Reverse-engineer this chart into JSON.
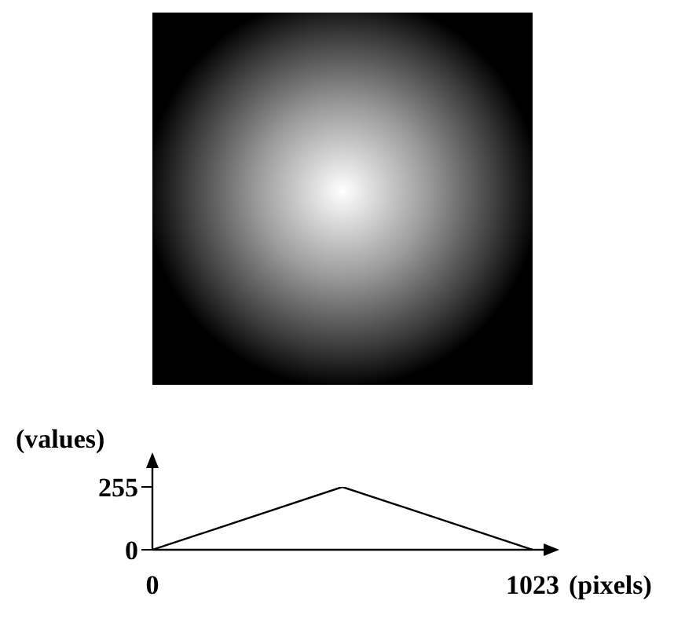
{
  "chart_data": {
    "type": "line",
    "xlabel": "(pixels)",
    "ylabel": "(values)",
    "x": [
      0,
      511,
      1023
    ],
    "series": [
      {
        "color": "#000000",
        "values": [
          0,
          255,
          0
        ]
      }
    ],
    "xlim": [
      0,
      1023
    ],
    "ylim": [
      0,
      255
    ],
    "xticks": [
      0,
      1023
    ],
    "yticks": [
      0,
      255
    ],
    "grid": false,
    "marker": "none",
    "line_style": "solid"
  }
}
